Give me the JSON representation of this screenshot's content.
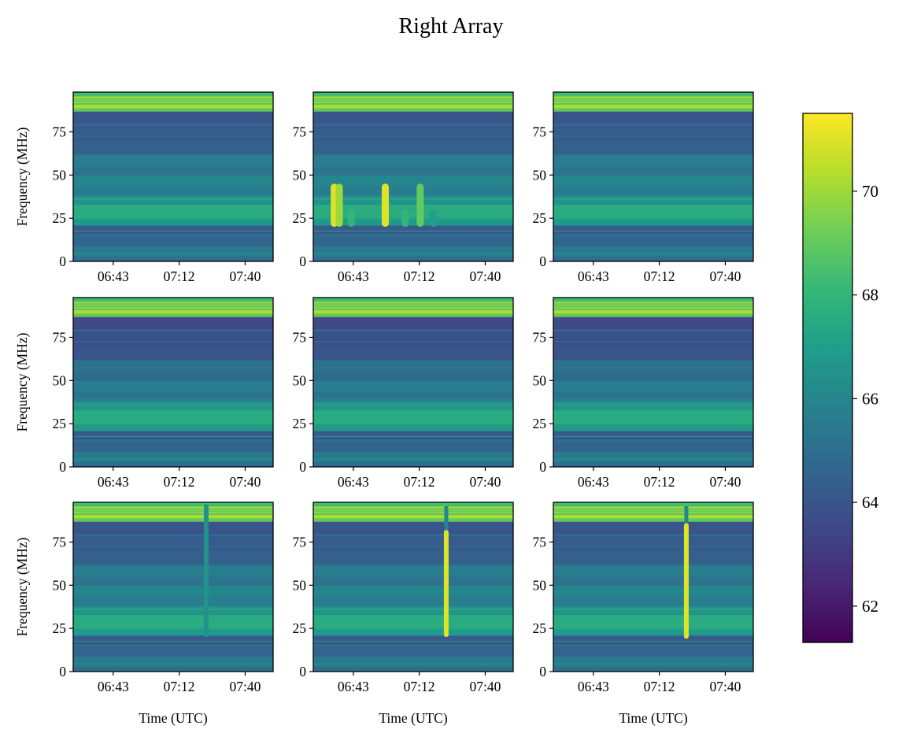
{
  "figure": {
    "title": "Right Array"
  },
  "colormap": {
    "name": "viridis",
    "stops": [
      "#440154",
      "#482878",
      "#3e4a89",
      "#31688e",
      "#26828e",
      "#1f9e89",
      "#35b779",
      "#6ece58",
      "#b5de2b",
      "#fde725"
    ]
  },
  "chart_data": {
    "type": "heatmap",
    "layout": "3x3 grid of spectrograms",
    "x_ticks": [
      "06:43",
      "07:12",
      "07:40"
    ],
    "y_ticks": [
      "0",
      "25",
      "50",
      "75"
    ],
    "ylabel": "Frequency (MHz)",
    "xlabel": "Time (UTC)",
    "y_range": [
      0,
      98
    ],
    "colorbar": {
      "range": [
        61.3,
        71.5
      ],
      "ticks": [
        "62",
        "64",
        "66",
        "68",
        "70"
      ]
    },
    "panels": [
      {
        "row": 0,
        "col": 0,
        "events": []
      },
      {
        "row": 0,
        "col": 1,
        "events": [
          {
            "type": "vertical_burst",
            "time_frac": 0.105,
            "freq_range": [
              20,
              45
            ],
            "level": 71
          },
          {
            "type": "vertical_burst",
            "time_frac": 0.13,
            "freq_range": [
              20,
              45
            ],
            "level": 70
          },
          {
            "type": "vertical_burst",
            "time_frac": 0.19,
            "freq_range": [
              20,
              30
            ],
            "level": 68
          },
          {
            "type": "vertical_burst",
            "time_frac": 0.36,
            "freq_range": [
              20,
              45
            ],
            "level": 71
          },
          {
            "type": "vertical_burst",
            "time_frac": 0.46,
            "freq_range": [
              20,
              30
            ],
            "level": 68
          },
          {
            "type": "vertical_burst",
            "time_frac": 0.535,
            "freq_range": [
              20,
              45
            ],
            "level": 69
          },
          {
            "type": "vertical_burst",
            "time_frac": 0.6,
            "freq_range": [
              20,
              30
            ],
            "level": 67
          }
        ]
      },
      {
        "row": 0,
        "col": 2,
        "events": []
      },
      {
        "row": 1,
        "col": 0,
        "events": []
      },
      {
        "row": 1,
        "col": 1,
        "events": []
      },
      {
        "row": 1,
        "col": 2,
        "events": []
      },
      {
        "row": 2,
        "col": 0,
        "events": [
          {
            "type": "vertical_line",
            "time_frac": 0.665,
            "freq_range": [
              20,
              97
            ],
            "level": 66.5
          }
        ]
      },
      {
        "row": 2,
        "col": 1,
        "events": [
          {
            "type": "vertical_line",
            "time_frac": 0.665,
            "freq_range": [
              20,
              82
            ],
            "level": 71
          }
        ]
      },
      {
        "row": 2,
        "col": 2,
        "events": [
          {
            "type": "vertical_line",
            "time_frac": 0.665,
            "freq_range": [
              19,
              86
            ],
            "level": 71
          }
        ]
      }
    ]
  }
}
